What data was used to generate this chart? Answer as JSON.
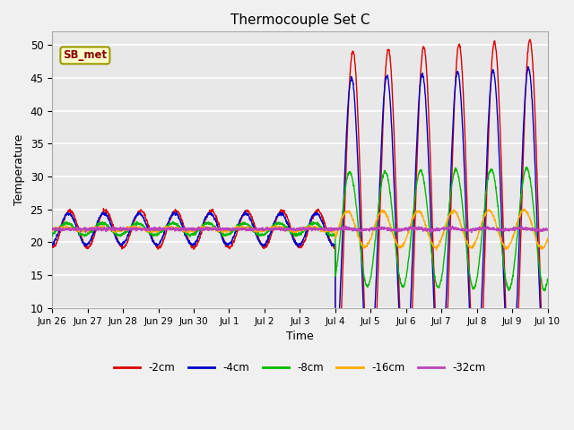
{
  "title": "Thermocouple Set C",
  "xlabel": "Time",
  "ylabel": "Temperature",
  "ylim": [
    10,
    52
  ],
  "yticks": [
    10,
    15,
    20,
    25,
    30,
    35,
    40,
    45,
    50
  ],
  "fig_bg_color": "#f0f0f0",
  "plot_bg_color": "#e8e8e8",
  "grid_color": "white",
  "series_colors": {
    "-2cm": "#dd0000",
    "-4cm": "#0000cc",
    "-8cm": "#00bb00",
    "-16cm": "#ffaa00",
    "-32cm": "#bb44bb"
  },
  "legend_label": "SB_met",
  "legend_box_facecolor": "#ffffcc",
  "legend_box_edgecolor": "#999900",
  "n_days_before": 8,
  "n_days_after": 6,
  "samples_per_day": 144,
  "base_temp": 22.0,
  "small_amp_2cm": 2.8,
  "large_amp_2cm": 27.0,
  "amp_4cm_ratio": 0.85,
  "amp_8cm_ratio": 0.32,
  "amp_16cm_ratio": 0.1,
  "amp_32cm_ratio": 0.005,
  "phase_lag_4cm": 0.04,
  "phase_lag_8cm": 0.09,
  "phase_lag_16cm": 0.16,
  "phase_lag_32cm": 0.25,
  "tick_labels": [
    "Jun 26",
    "Jun 27",
    "Jun 28",
    "Jun 29",
    "Jun 30",
    "Jul 1",
    "Jul 2",
    "Jul 3",
    "Jul 4",
    "Jul 5",
    "Jul 6",
    "Jul 7",
    "Jul 8",
    "Jul 9",
    "Jul 10"
  ]
}
